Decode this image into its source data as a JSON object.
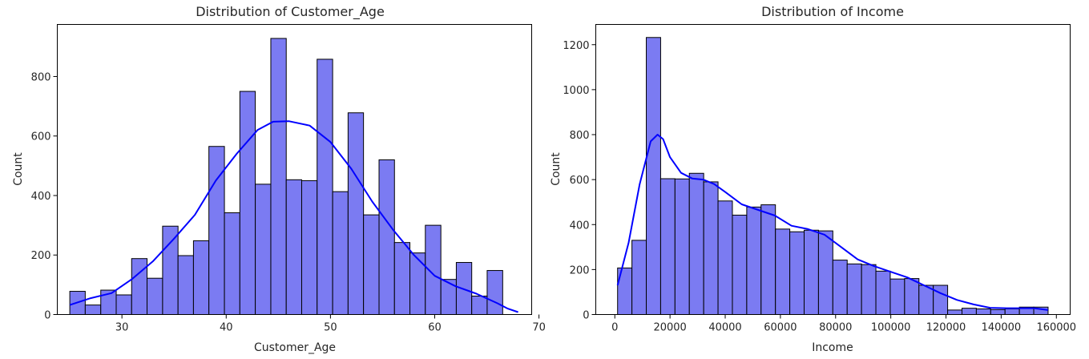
{
  "chart_data": [
    {
      "type": "bar",
      "title": "Distribution of Customer_Age",
      "xlabel": "Customer_Age",
      "ylabel": "Count",
      "xlim": [
        23.8,
        69.3
      ],
      "ylim": [
        0,
        975
      ],
      "xticks": [
        30,
        40,
        50,
        60,
        70
      ],
      "yticks": [
        0,
        200,
        400,
        600,
        800
      ],
      "bin_edges": [
        25,
        26.48,
        27.97,
        29.45,
        30.93,
        32.41,
        33.9,
        35.38,
        36.86,
        38.34,
        39.83,
        41.31,
        42.79,
        44.28,
        45.76,
        47.24,
        48.72,
        50.21,
        51.69,
        53.17,
        54.66,
        56.14,
        57.62,
        59.1,
        60.59,
        62.07,
        63.55,
        65.03,
        66.52,
        68.0
      ],
      "values": [
        78,
        32,
        82,
        66,
        188,
        122,
        297,
        198,
        248,
        565,
        342,
        750,
        438,
        928,
        453,
        450,
        858,
        413,
        678,
        335,
        520,
        242,
        207,
        300,
        118,
        175,
        62,
        148,
        0,
        8
      ],
      "kde": {
        "x": [
          25,
          27,
          29,
          31,
          33,
          35,
          37,
          39,
          41,
          43,
          44.5,
          46,
          48,
          50,
          52,
          54,
          56,
          58,
          60,
          62,
          64,
          66,
          67,
          68
        ],
        "y": [
          32,
          55,
          72,
          120,
          180,
          255,
          335,
          450,
          540,
          620,
          648,
          650,
          635,
          580,
          490,
          380,
          285,
          200,
          130,
          95,
          70,
          38,
          20,
          8
        ]
      },
      "bar_color": "#7b7bf2",
      "edge_color": "#000000",
      "line_color": "#0000ff"
    },
    {
      "type": "bar",
      "title": "Distribution of Income",
      "xlabel": "Income",
      "ylabel": "Count",
      "xlim": [
        -6900,
        165000
      ],
      "ylim": [
        0,
        1290
      ],
      "xticks": [
        0,
        20000,
        40000,
        60000,
        80000,
        100000,
        120000,
        140000,
        160000
      ],
      "yticks": [
        0,
        200,
        400,
        600,
        800,
        1000,
        1200
      ],
      "bin_edges": [
        1000,
        6200,
        11400,
        16600,
        21800,
        27000,
        32200,
        37400,
        42600,
        47800,
        53000,
        58200,
        63400,
        68600,
        73800,
        79000,
        84200,
        89400,
        94600,
        99800,
        105000,
        110200,
        115400,
        120600,
        125800,
        131000,
        136200,
        141400,
        146600,
        151800,
        157000
      ],
      "values": [
        207,
        330,
        1232,
        604,
        603,
        628,
        590,
        505,
        442,
        478,
        488,
        380,
        368,
        375,
        372,
        242,
        225,
        222,
        193,
        158,
        160,
        130,
        130,
        20,
        28,
        25,
        22,
        25,
        33,
        33
      ],
      "kde": {
        "x": [
          1000,
          5000,
          9000,
          13000,
          15500,
          17500,
          20000,
          24000,
          28000,
          32000,
          36000,
          40000,
          46000,
          52000,
          58000,
          64000,
          70000,
          76000,
          82000,
          88000,
          94000,
          100000,
          106000,
          112000,
          118000,
          124000,
          130000,
          136000,
          142000,
          148000,
          152000,
          157000
        ],
        "y": [
          130,
          320,
          580,
          770,
          800,
          780,
          700,
          630,
          605,
          600,
          580,
          545,
          490,
          465,
          440,
          395,
          380,
          355,
          300,
          245,
          215,
          190,
          165,
          130,
          95,
          65,
          45,
          30,
          28,
          28,
          28,
          20
        ]
      },
      "bar_color": "#7b7bf2",
      "edge_color": "#000000",
      "line_color": "#0000ff"
    }
  ]
}
